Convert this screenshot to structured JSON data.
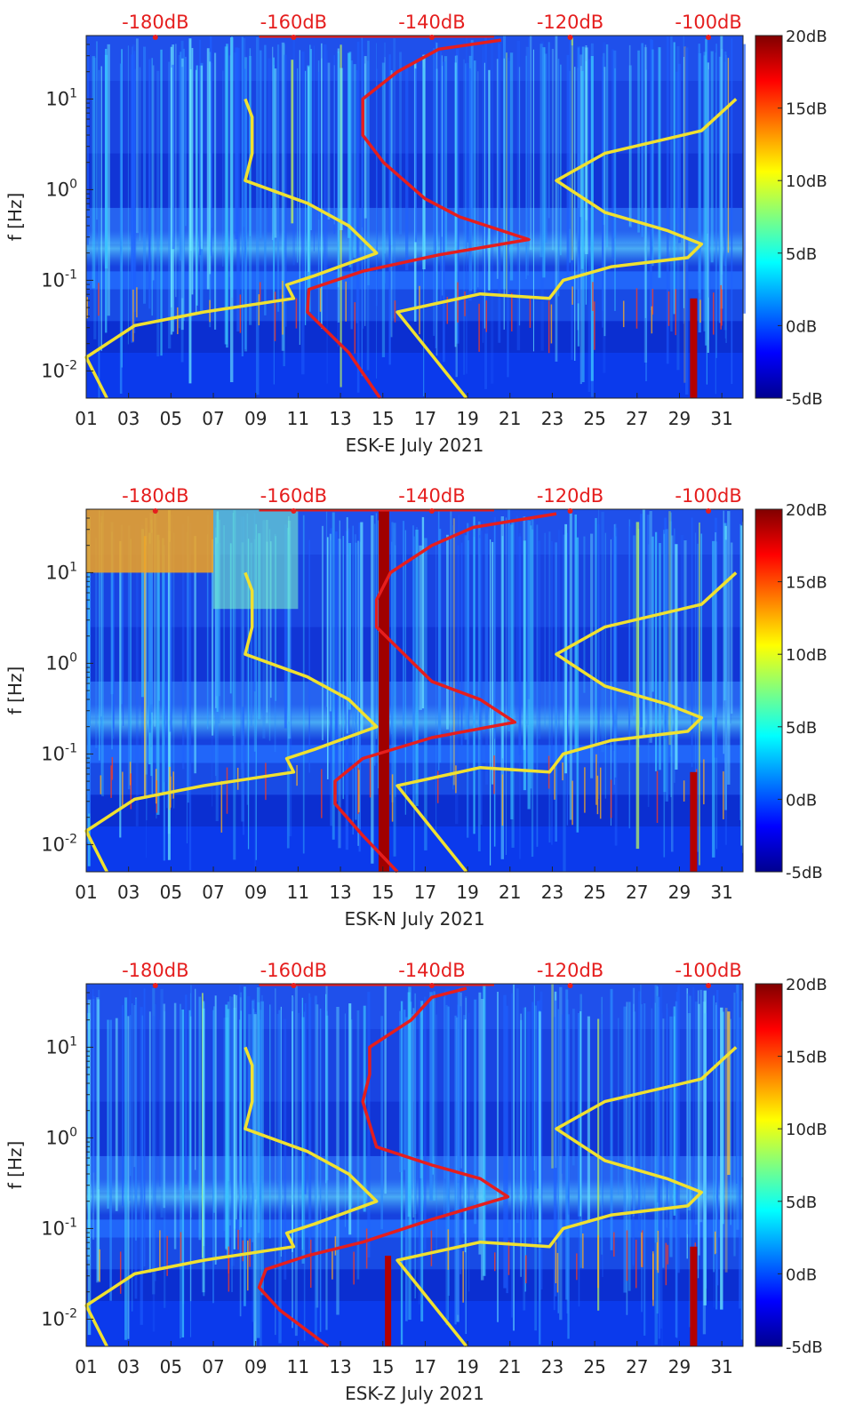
{
  "chart_data": [
    {
      "type": "heatmap",
      "title": "",
      "xlabel": "ESK-E July 2021",
      "ylabel": "f [Hz]",
      "x_ticks": [
        "01",
        "03",
        "05",
        "07",
        "09",
        "11",
        "13",
        "15",
        "17",
        "19",
        "21",
        "23",
        "25",
        "27",
        "29",
        "31"
      ],
      "y_ticks": [
        "10^-2",
        "10^-1",
        "10^0",
        "10^1"
      ],
      "top_ticks": [
        "-180dB",
        "-160dB",
        "-140dB",
        "-120dB",
        "-100dB"
      ],
      "colorbar_ticks": [
        "20dB",
        "15dB",
        "10dB",
        "5dB",
        "0dB",
        "-5dB"
      ],
      "xlim": [
        1,
        32
      ],
      "ylim_log10": [
        -2.3,
        1.7
      ],
      "color_range_db": [
        -5,
        20
      ],
      "top_axis_db_range": [
        -190,
        -95
      ],
      "curves": [
        {
          "name": "red PSD curve",
          "color": "#e51e1e",
          "points_db_logf": [
            [
              -147.5,
              -2.3
            ],
            [
              -152,
              -1.8
            ],
            [
              -158,
              -1.35
            ],
            [
              -157.8,
              -1.1
            ],
            [
              -150,
              -0.9
            ],
            [
              -139,
              -0.72
            ],
            [
              -126,
              -0.55
            ],
            [
              -136,
              -0.3
            ],
            [
              -141,
              -0.1
            ],
            [
              -147,
              0.3
            ],
            [
              -150,
              0.6
            ],
            [
              -150,
              0.75
            ],
            [
              -150,
              1.0
            ],
            [
              -145,
              1.3
            ],
            [
              -139,
              1.55
            ],
            [
              -130,
              1.65
            ]
          ]
        },
        {
          "name": "yellow low-noise model",
          "color": "#f0e130",
          "points_db_logf": [
            [
              -187,
              -2.3
            ],
            [
              -190,
              -1.85
            ],
            [
              -183,
              -1.5
            ],
            [
              -173,
              -1.35
            ],
            [
              -160,
              -1.2
            ],
            [
              -161,
              -1.05
            ],
            [
              -157,
              -0.95
            ],
            [
              -148,
              -0.7
            ],
            [
              -152,
              -0.4
            ],
            [
              -158,
              -0.15
            ],
            [
              -167,
              0.1
            ],
            [
              -166,
              0.4
            ],
            [
              -166,
              0.8
            ],
            [
              -167,
              1.0
            ]
          ]
        },
        {
          "name": "yellow high-noise model",
          "color": "#f0e130",
          "points_db_logf": [
            [
              -135,
              -2.3
            ],
            [
              -145,
              -1.35
            ],
            [
              -133,
              -1.15
            ],
            [
              -123,
              -1.2
            ],
            [
              -121,
              -1.0
            ],
            [
              -114,
              -0.85
            ],
            [
              -103,
              -0.75
            ],
            [
              -101,
              -0.6
            ],
            [
              -106,
              -0.45
            ],
            [
              -115,
              -0.25
            ],
            [
              -122,
              0.1
            ],
            [
              -115,
              0.4
            ],
            [
              -101,
              0.65
            ],
            [
              -96,
              1.0
            ]
          ]
        }
      ]
    },
    {
      "type": "heatmap",
      "title": "",
      "xlabel": "ESK-N July 2021",
      "ylabel": "f [Hz]",
      "x_ticks": [
        "01",
        "03",
        "05",
        "07",
        "09",
        "11",
        "13",
        "15",
        "17",
        "19",
        "21",
        "23",
        "25",
        "27",
        "29",
        "31"
      ],
      "y_ticks": [
        "10^-2",
        "10^-1",
        "10^0",
        "10^1"
      ],
      "top_ticks": [
        "-180dB",
        "-160dB",
        "-140dB",
        "-120dB",
        "-100dB"
      ],
      "colorbar_ticks": [
        "20dB",
        "15dB",
        "10dB",
        "5dB",
        "0dB",
        "-5dB"
      ],
      "xlim": [
        1,
        32
      ],
      "ylim_log10": [
        -2.3,
        1.7
      ],
      "color_range_db": [
        -5,
        20
      ],
      "top_axis_db_range": [
        -190,
        -95
      ],
      "curves": [
        {
          "name": "red PSD curve",
          "color": "#e51e1e",
          "points_db_logf": [
            [
              -145,
              -2.3
            ],
            [
              -150,
              -1.9
            ],
            [
              -154,
              -1.55
            ],
            [
              -154,
              -1.3
            ],
            [
              -150,
              -1.05
            ],
            [
              -140,
              -0.82
            ],
            [
              -128,
              -0.65
            ],
            [
              -133,
              -0.4
            ],
            [
              -140,
              -0.2
            ],
            [
              -144,
              0.1
            ],
            [
              -148,
              0.4
            ],
            [
              -148,
              0.7
            ],
            [
              -146,
              1.0
            ],
            [
              -140,
              1.3
            ],
            [
              -134,
              1.5
            ],
            [
              -122,
              1.65
            ]
          ]
        },
        {
          "name": "yellow low-noise model",
          "color": "#f0e130",
          "points_db_logf": [
            [
              -187,
              -2.3
            ],
            [
              -190,
              -1.85
            ],
            [
              -183,
              -1.5
            ],
            [
              -173,
              -1.35
            ],
            [
              -160,
              -1.2
            ],
            [
              -161,
              -1.05
            ],
            [
              -157,
              -0.95
            ],
            [
              -148,
              -0.7
            ],
            [
              -152,
              -0.4
            ],
            [
              -158,
              -0.15
            ],
            [
              -167,
              0.1
            ],
            [
              -166,
              0.4
            ],
            [
              -166,
              0.8
            ],
            [
              -167,
              1.0
            ]
          ]
        },
        {
          "name": "yellow high-noise model",
          "color": "#f0e130",
          "points_db_logf": [
            [
              -135,
              -2.3
            ],
            [
              -145,
              -1.35
            ],
            [
              -133,
              -1.15
            ],
            [
              -123,
              -1.2
            ],
            [
              -121,
              -1.0
            ],
            [
              -114,
              -0.85
            ],
            [
              -103,
              -0.75
            ],
            [
              -101,
              -0.6
            ],
            [
              -106,
              -0.45
            ],
            [
              -115,
              -0.25
            ],
            [
              -122,
              0.1
            ],
            [
              -115,
              0.4
            ],
            [
              -101,
              0.65
            ],
            [
              -96,
              1.0
            ]
          ]
        }
      ]
    },
    {
      "type": "heatmap",
      "title": "",
      "xlabel": "ESK-Z July 2021",
      "ylabel": "f [Hz]",
      "x_ticks": [
        "01",
        "03",
        "05",
        "07",
        "09",
        "11",
        "13",
        "15",
        "17",
        "19",
        "21",
        "23",
        "25",
        "27",
        "29",
        "31"
      ],
      "y_ticks": [
        "10^-2",
        "10^-1",
        "10^0",
        "10^1"
      ],
      "top_ticks": [
        "-180dB",
        "-160dB",
        "-140dB",
        "-120dB",
        "-100dB"
      ],
      "colorbar_ticks": [
        "20dB",
        "15dB",
        "10dB",
        "5dB",
        "0dB",
        "-5dB"
      ],
      "xlim": [
        1,
        32
      ],
      "ylim_log10": [
        -2.3,
        1.7
      ],
      "color_range_db": [
        -5,
        20
      ],
      "top_axis_db_range": [
        -190,
        -95
      ],
      "curves": [
        {
          "name": "red PSD curve",
          "color": "#e51e1e",
          "points_db_logf": [
            [
              -155,
              -2.3
            ],
            [
              -162,
              -1.9
            ],
            [
              -165,
              -1.65
            ],
            [
              -164,
              -1.45
            ],
            [
              -158,
              -1.3
            ],
            [
              -150,
              -1.15
            ],
            [
              -140,
              -0.9
            ],
            [
              -129,
              -0.65
            ],
            [
              -133,
              -0.45
            ],
            [
              -140,
              -0.3
            ],
            [
              -148,
              -0.1
            ],
            [
              -150,
              0.4
            ],
            [
              -149,
              0.7
            ],
            [
              -149,
              1.0
            ],
            [
              -143,
              1.3
            ],
            [
              -140,
              1.55
            ],
            [
              -135,
              1.65
            ]
          ]
        },
        {
          "name": "yellow low-noise model",
          "color": "#f0e130",
          "points_db_logf": [
            [
              -187,
              -2.3
            ],
            [
              -190,
              -1.85
            ],
            [
              -183,
              -1.5
            ],
            [
              -173,
              -1.35
            ],
            [
              -160,
              -1.2
            ],
            [
              -161,
              -1.05
            ],
            [
              -157,
              -0.95
            ],
            [
              -148,
              -0.7
            ],
            [
              -152,
              -0.4
            ],
            [
              -158,
              -0.15
            ],
            [
              -167,
              0.1
            ],
            [
              -166,
              0.4
            ],
            [
              -166,
              0.8
            ],
            [
              -167,
              1.0
            ]
          ]
        },
        {
          "name": "yellow high-noise model",
          "color": "#f0e130",
          "points_db_logf": [
            [
              -135,
              -2.3
            ],
            [
              -145,
              -1.35
            ],
            [
              -133,
              -1.15
            ],
            [
              -123,
              -1.2
            ],
            [
              -121,
              -1.0
            ],
            [
              -114,
              -0.85
            ],
            [
              -103,
              -0.75
            ],
            [
              -101,
              -0.6
            ],
            [
              -106,
              -0.45
            ],
            [
              -115,
              -0.25
            ],
            [
              -122,
              0.1
            ],
            [
              -115,
              0.4
            ],
            [
              -101,
              0.65
            ],
            [
              -96,
              1.0
            ]
          ]
        }
      ]
    }
  ]
}
